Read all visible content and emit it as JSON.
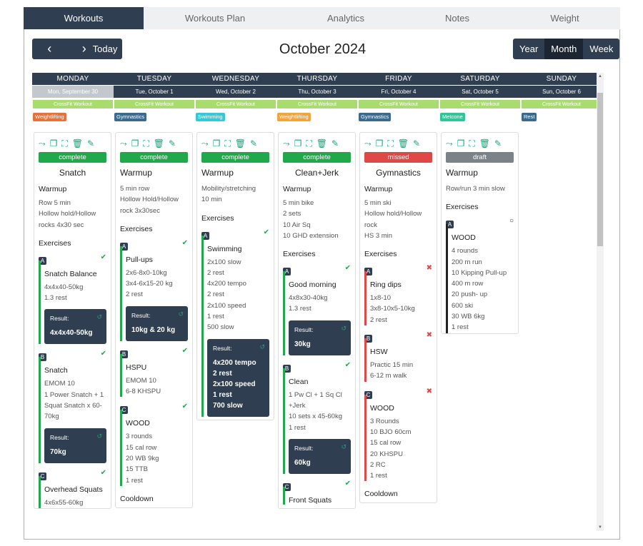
{
  "tabs": [
    "Workouts",
    "Workouts Plan",
    "Analytics",
    "Notes",
    "Weight"
  ],
  "toolbar": {
    "prev": "‹",
    "next": "›",
    "today": "Today",
    "title": "October 2024",
    "views": [
      "Year",
      "Month",
      "Week"
    ],
    "active_view": "Month"
  },
  "days": [
    {
      "name": "MONDAY",
      "date": "Mon, September 30",
      "past": true,
      "tag": "CrossFit Workout",
      "label": "Weightlifting",
      "label_color": "#e8703a"
    },
    {
      "name": "TUESDAY",
      "date": "Tue, October 1",
      "tag": "CrossFit Workout",
      "label": "Gymnastics",
      "label_color": "#3d6a8c"
    },
    {
      "name": "WEDNESDAY",
      "date": "Wed, October 2",
      "tag": "CrossFit Workout",
      "label": "Swimming",
      "label_color": "#35c8d6"
    },
    {
      "name": "THURSDAY",
      "date": "Thu, October 3",
      "tag": "CrossFit Workout",
      "label": "Weightlifting",
      "label_color": "#f2a33a"
    },
    {
      "name": "FRIDAY",
      "date": "Fri, October 4",
      "tag": "CrossFit Workout",
      "label": "Gymnastics",
      "label_color": "#3d6a8c"
    },
    {
      "name": "SATURDAY",
      "date": "Sat, October 5",
      "tag": "CrossFit Workout",
      "label": "Metcone",
      "label_color": "#2fc79a"
    },
    {
      "name": "SUNDAY",
      "date": "Sun, October 6",
      "tag": "CrossFit Workout",
      "label": "Rest",
      "label_color": "#3d6a8c"
    }
  ],
  "cards": [
    {
      "status": "complete",
      "title": "Snatch",
      "title_center": true,
      "section1": "Warmup",
      "warmup": "Row 5 min\nHollow hold/Hollow\nrocks 4x30 sec",
      "exercises_label": "Exercises",
      "ex": [
        {
          "letter": "A",
          "name": "Snatch Balance",
          "text": "4x4x40-50kg\n1.3 rest",
          "result": "4x4x40-50kg",
          "mark": "✔",
          "color": "#21a84a"
        },
        {
          "letter": "B",
          "name": "Snatch",
          "text": "EMOM 10\n1 Power Snatch + 1\nSquat Snatch x 60-\n70kg",
          "result": "70kg",
          "mark": "✔",
          "color": "#21a84a"
        },
        {
          "letter": "C",
          "name": "Overhead Squats",
          "text": "4x6x55-60kg",
          "mark": "✔",
          "color": "#21a84a"
        }
      ]
    },
    {
      "status": "complete",
      "title": "Warmup",
      "warmup": "5 min row\nHollow Hold/Hollow\nrock 3x30sec",
      "exercises_label": "Exercises",
      "ex": [
        {
          "letter": "A",
          "name": "Pull-ups",
          "text": "2x6-8x0-10kg\n3x4-6x15-20 kg\n2 rest",
          "result": "10kg & 20 kg",
          "mark": "✔",
          "color": "#21a84a"
        },
        {
          "letter": "B",
          "name": "HSPU",
          "text": "EMOM 10\n6-8 KHSPU",
          "mark": "✔",
          "color": "#21a84a"
        },
        {
          "letter": "C",
          "name": "WOOD",
          "text": "3 rounds\n15 cal row\n20 WB 9kg\n15 TTB\n1 rest",
          "mark": "✔",
          "color": "#21a84a"
        }
      ],
      "cooldown": "Cooldown"
    },
    {
      "status": "complete",
      "title": "Warmup",
      "warmup": "Mobility/stretching\n10 min",
      "exercises_label": "Exercises",
      "ex": [
        {
          "letter": "A",
          "name": "Swimming",
          "text": "2x100 slow\n2 rest\n4x200 tempo\n2 rest\n2x100 speed\n1 rest\n500 slow",
          "result": "4x200 tempo\n2 rest\n2x100 speed\n1 rest\n700 slow",
          "mark": "✔",
          "color": "#21a84a"
        }
      ]
    },
    {
      "status": "complete",
      "title": "Clean+Jerk",
      "title_center": true,
      "section1": "Warmup",
      "warmup": "5 min bike\n2 sets\n10 Air Sq\n10 GHD extension",
      "exercises_label": "Exercises",
      "ex": [
        {
          "letter": "A",
          "name": "Good morning",
          "text": "4x8x30-40kg\n1.3 rest",
          "result": "30kg",
          "mark": "✔",
          "color": "#21a84a"
        },
        {
          "letter": "B",
          "name": "Clean",
          "text": "1 Pw Cl + 1 Sq Cl\n+Jerk\n10 sets x 45-60kg\n1 rest",
          "result": "60kg",
          "mark": "✔",
          "color": "#21a84a"
        },
        {
          "letter": "C",
          "name": "Front Squats",
          "text": "",
          "mark": "✔",
          "color": "#21a84a"
        }
      ]
    },
    {
      "status": "missed",
      "title": "Gymnastics",
      "title_center": true,
      "section1": "Warmup",
      "warmup": "5 min ski\nHollow hold/Hollow\nrock\nHS 3 min",
      "exercises_label": "Exercises",
      "ex": [
        {
          "letter": "A",
          "name": "Ring dips",
          "text": "1x8-10\n3x8-10x5-10kg\n2 rest",
          "mark": "✖",
          "color": "#e04848"
        },
        {
          "letter": "B",
          "name": "HSW",
          "text": "Practic 15 min\n6-12 m walk",
          "mark": "✖",
          "color": "#e04848"
        },
        {
          "letter": "C",
          "name": "WOOD",
          "text": "3 Rounds\n10 BJO 60cm\n15 cal row\n20 KHSPU\n2 RC\n1 rest",
          "mark": "✖",
          "color": "#e04848"
        }
      ],
      "cooldown": "Cooldown"
    },
    {
      "status": "draft",
      "title": "Warmup",
      "warmup": "Row/run 3 min slow",
      "exercises_label": "Exercises",
      "ex": [
        {
          "letter": "A",
          "name": "WOOD",
          "text": "4 rounds\n200 m run\n10 Kipping Pull-up\n400 m row\n20 push- up\n600 ski\n30 WB 6kg\n1 rest",
          "mark": "○",
          "color": "#222"
        }
      ]
    }
  ],
  "status_colors": {
    "complete": "#21a84a",
    "missed": "#e04848",
    "draft": "#7b8288"
  }
}
